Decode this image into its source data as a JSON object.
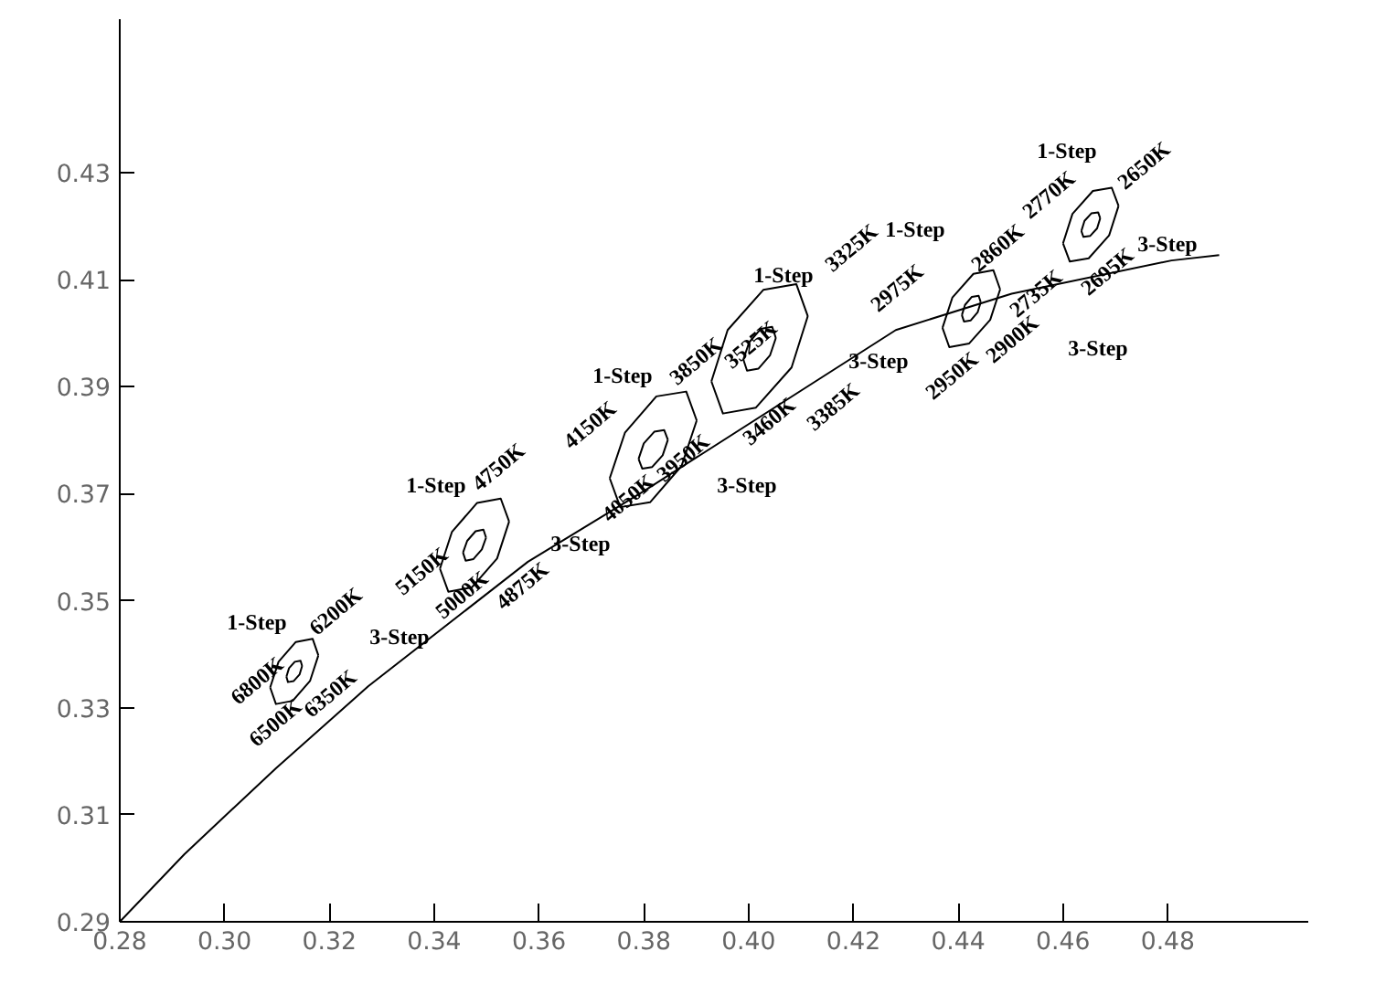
{
  "chart_data": {
    "type": "line",
    "xlim": [
      0.28,
      0.5068
    ],
    "ylim": [
      0.29,
      0.4587
    ],
    "xticks": [
      0.28,
      {
        "value": 0.3,
        "label": "0.30"
      },
      0.32,
      0.34,
      0.36,
      0.38,
      {
        "value": 0.4,
        "label": "0.40"
      },
      0.42,
      0.44,
      0.46,
      0.48
    ],
    "yticks": [
      0.29,
      0.31,
      0.33,
      0.35,
      0.37,
      0.39,
      0.41,
      0.43
    ],
    "grid": false,
    "marker": "none",
    "line_style": "solid",
    "series": [
      {
        "color": "#000000",
        "x": [
          0.28,
          0.2923,
          0.3098,
          0.3274,
          0.3579,
          0.38,
          0.4281,
          0.4502,
          0.4807,
          0.4898
        ],
        "values": [
          0.29,
          0.3026,
          0.3187,
          0.334,
          0.3573,
          0.3705,
          0.4006,
          0.4074,
          0.4136,
          0.4146
        ]
      },
      {
        "color": "#000000",
        "x": [
          0.3087,
          0.3103,
          0.3136,
          0.3168,
          0.3179
        ],
        "values": [
          0.3338,
          0.3386,
          0.3423,
          0.3429,
          0.3398
        ]
      },
      {
        "color": "#000000",
        "x": [
          0.3087,
          0.3098,
          0.313,
          0.3163,
          0.3179
        ],
        "values": [
          0.3338,
          0.3307,
          0.3313,
          0.335,
          0.3398
        ]
      },
      {
        "color": "#000000",
        "x": [
          0.3118,
          0.3123,
          0.3134,
          0.3145,
          0.3148
        ],
        "values": [
          0.3358,
          0.3374,
          0.3386,
          0.3388,
          0.3378
        ]
      },
      {
        "color": "#000000",
        "x": [
          0.3118,
          0.3121,
          0.3132,
          0.3143,
          0.3148
        ],
        "values": [
          0.3358,
          0.3348,
          0.335,
          0.3362,
          0.3378
        ]
      },
      {
        "color": "#000000",
        "x": [
          0.3411,
          0.3434,
          0.3482,
          0.3527,
          0.3543
        ],
        "values": [
          0.356,
          0.3629,
          0.3683,
          0.3691,
          0.3648
        ]
      },
      {
        "color": "#000000",
        "x": [
          0.3411,
          0.3427,
          0.3472,
          0.352,
          0.3543
        ],
        "values": [
          0.356,
          0.3517,
          0.3525,
          0.3579,
          0.3648
        ]
      },
      {
        "color": "#000000",
        "x": [
          0.3455,
          0.3463,
          0.3479,
          0.3494,
          0.3499
        ],
        "values": [
          0.359,
          0.3612,
          0.363,
          0.3633,
          0.3618
        ]
      },
      {
        "color": "#000000",
        "x": [
          0.3455,
          0.346,
          0.3475,
          0.3491,
          0.3499
        ],
        "values": [
          0.359,
          0.3575,
          0.3578,
          0.3596,
          0.3618
        ]
      },
      {
        "color": "#000000",
        "x": [
          0.3735,
          0.3764,
          0.3824,
          0.3881,
          0.3901
        ],
        "values": [
          0.3729,
          0.3814,
          0.3882,
          0.3891,
          0.3837
        ]
      },
      {
        "color": "#000000",
        "x": [
          0.3735,
          0.3755,
          0.3812,
          0.3872,
          0.3901
        ],
        "values": [
          0.3729,
          0.3675,
          0.3684,
          0.3752,
          0.3837
        ]
      },
      {
        "color": "#000000",
        "x": [
          0.379,
          0.38,
          0.382,
          0.3839,
          0.3846
        ],
        "values": [
          0.3765,
          0.3794,
          0.3816,
          0.3819,
          0.3801
        ]
      },
      {
        "color": "#000000",
        "x": [
          0.379,
          0.3797,
          0.3816,
          0.3836,
          0.3846
        ],
        "values": [
          0.3765,
          0.3747,
          0.375,
          0.3772,
          0.3801
        ]
      },
      {
        "color": "#000000",
        "x": [
          0.3929,
          0.396,
          0.4028,
          0.4091,
          0.4113
        ],
        "values": [
          0.391,
          0.4006,
          0.4081,
          0.4092,
          0.4032
        ]
      },
      {
        "color": "#000000",
        "x": [
          0.3929,
          0.3951,
          0.4014,
          0.4082,
          0.4113
        ],
        "values": [
          0.391,
          0.385,
          0.3861,
          0.3936,
          0.4032
        ]
      },
      {
        "color": "#000000",
        "x": [
          0.399,
          0.4001,
          0.4023,
          0.4045,
          0.4052
        ],
        "values": [
          0.3951,
          0.3983,
          0.4008,
          0.4012,
          0.3991
        ]
      },
      {
        "color": "#000000",
        "x": [
          0.399,
          0.3997,
          0.4019,
          0.4041,
          0.4052
        ],
        "values": [
          0.3951,
          0.393,
          0.3934,
          0.3959,
          0.3991
        ]
      },
      {
        "color": "#000000",
        "x": [
          0.437,
          0.4389,
          0.4429,
          0.4467,
          0.448
        ],
        "values": [
          0.401,
          0.4067,
          0.4111,
          0.4118,
          0.4082
        ]
      },
      {
        "color": "#000000",
        "x": [
          0.437,
          0.4383,
          0.4421,
          0.4461,
          0.448
        ],
        "values": [
          0.401,
          0.3974,
          0.3981,
          0.4025,
          0.4082
        ]
      },
      {
        "color": "#000000",
        "x": [
          0.4407,
          0.4413,
          0.4426,
          0.4439,
          0.4443
        ],
        "values": [
          0.4034,
          0.4053,
          0.4068,
          0.407,
          0.4058
        ]
      },
      {
        "color": "#000000",
        "x": [
          0.4407,
          0.4411,
          0.4424,
          0.4437,
          0.4443
        ],
        "values": [
          0.4034,
          0.4022,
          0.4024,
          0.4039,
          0.4058
        ]
      },
      {
        "color": "#000000",
        "x": [
          0.46,
          0.4618,
          0.4657,
          0.4693,
          0.4706
        ],
        "values": [
          0.4168,
          0.4223,
          0.4266,
          0.4272,
          0.4238
        ]
      },
      {
        "color": "#000000",
        "x": [
          0.46,
          0.4613,
          0.4649,
          0.4688,
          0.4706
        ],
        "values": [
          0.4168,
          0.4134,
          0.414,
          0.4183,
          0.4238
        ]
      },
      {
        "color": "#000000",
        "x": [
          0.4635,
          0.4641,
          0.4654,
          0.4667,
          0.4671
        ],
        "values": [
          0.4191,
          0.421,
          0.4224,
          0.4226,
          0.4215
        ]
      },
      {
        "color": "#000000",
        "x": [
          0.4635,
          0.4639,
          0.4652,
          0.4665,
          0.4671
        ],
        "values": [
          0.4191,
          0.418,
          0.4182,
          0.4196,
          0.4215
        ]
      }
    ],
    "annotations": [
      "1-Step",
      "6200K",
      "3-Step",
      "6800K",
      "6500K",
      "6350K",
      "1-Step",
      "4750K",
      "3-Step",
      "5150K",
      "5000K",
      "4875K",
      "1-Step",
      "3850K",
      "3-Step",
      "4150K",
      "4050K",
      "3950K",
      "1-Step",
      "3325K",
      "3-Step",
      "3525K",
      "3460K",
      "3385K",
      "1-Step",
      "2860K",
      "3-Step",
      "2975K",
      "2950K",
      "2900K",
      "1-Step",
      "2650K",
      "3-Step",
      "2770K",
      "2735K",
      "2695K"
    ]
  }
}
